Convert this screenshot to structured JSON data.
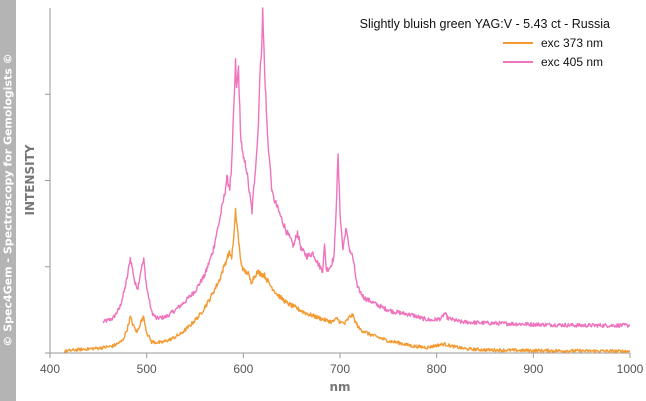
{
  "watermark": "© Spec4Gem - Spectroscopy for Gemologists ©",
  "colors": {
    "sidebar": "#b4b4b4",
    "axis": "#999999"
  },
  "chart_data": {
    "type": "line",
    "title": "Slightly bluish green YAG:V - 5.43 ct - Russia",
    "xlabel": "nm",
    "ylabel": "INTENSITY",
    "xlim": [
      400,
      1000
    ],
    "ylim": [
      0,
      100
    ],
    "xticks": [
      400,
      500,
      600,
      700,
      800,
      900,
      1000
    ],
    "legend_position": "top-right",
    "grid": false,
    "series": [
      {
        "name": "exc 373 nm",
        "color": "#f39a32",
        "points": [
          [
            415,
            0.5
          ],
          [
            430,
            1
          ],
          [
            450,
            1.4
          ],
          [
            465,
            2
          ],
          [
            475,
            3.5
          ],
          [
            480,
            7
          ],
          [
            483,
            10.5
          ],
          [
            486,
            8
          ],
          [
            490,
            6
          ],
          [
            494,
            9
          ],
          [
            497,
            10.5
          ],
          [
            500,
            6
          ],
          [
            505,
            3.2
          ],
          [
            515,
            3
          ],
          [
            525,
            4
          ],
          [
            535,
            5.5
          ],
          [
            545,
            8
          ],
          [
            555,
            11
          ],
          [
            565,
            15.5
          ],
          [
            575,
            21
          ],
          [
            580,
            25
          ],
          [
            585,
            29
          ],
          [
            588,
            28
          ],
          [
            590,
            33
          ],
          [
            592,
            41
          ],
          [
            594,
            36
          ],
          [
            597,
            27
          ],
          [
            600,
            24
          ],
          [
            605,
            23
          ],
          [
            608,
            20.5
          ],
          [
            612,
            22.5
          ],
          [
            615,
            23.5
          ],
          [
            618,
            23
          ],
          [
            622,
            22.5
          ],
          [
            627,
            20
          ],
          [
            635,
            17
          ],
          [
            645,
            14.5
          ],
          [
            655,
            13
          ],
          [
            665,
            11.5
          ],
          [
            675,
            10.5
          ],
          [
            685,
            9.5
          ],
          [
            692,
            9
          ],
          [
            697,
            10
          ],
          [
            700,
            9
          ],
          [
            705,
            8.5
          ],
          [
            710,
            10.5
          ],
          [
            713,
            11
          ],
          [
            716,
            9
          ],
          [
            720,
            7
          ],
          [
            730,
            5.5
          ],
          [
            740,
            4.5
          ],
          [
            750,
            3.5
          ],
          [
            760,
            3
          ],
          [
            775,
            2
          ],
          [
            790,
            1.6
          ],
          [
            800,
            2.2
          ],
          [
            808,
            2.6
          ],
          [
            815,
            2
          ],
          [
            830,
            1.2
          ],
          [
            850,
            0.9
          ],
          [
            870,
            0.8
          ],
          [
            900,
            0.7
          ],
          [
            950,
            0.6
          ],
          [
            1000,
            0.5
          ]
        ]
      },
      {
        "name": "exc 405 nm",
        "color": "#ef73bd",
        "points": [
          [
            455,
            9
          ],
          [
            465,
            10
          ],
          [
            472,
            13
          ],
          [
            476,
            17
          ],
          [
            480,
            22
          ],
          [
            483,
            27.5
          ],
          [
            485,
            25
          ],
          [
            488,
            20
          ],
          [
            491,
            19
          ],
          [
            494,
            24
          ],
          [
            497,
            27
          ],
          [
            500,
            19
          ],
          [
            505,
            12
          ],
          [
            510,
            10
          ],
          [
            520,
            10.5
          ],
          [
            530,
            12.5
          ],
          [
            540,
            15
          ],
          [
            550,
            18
          ],
          [
            560,
            22.5
          ],
          [
            568,
            29
          ],
          [
            575,
            38
          ],
          [
            580,
            45
          ],
          [
            583,
            50.5
          ],
          [
            586,
            48
          ],
          [
            588,
            54
          ],
          [
            590,
            70
          ],
          [
            592,
            84
          ],
          [
            593,
            76
          ],
          [
            595,
            83
          ],
          [
            597,
            64
          ],
          [
            600,
            56
          ],
          [
            603,
            54
          ],
          [
            606,
            47
          ],
          [
            609,
            41
          ],
          [
            612,
            52
          ],
          [
            615,
            63
          ],
          [
            617,
            79
          ],
          [
            619,
            90
          ],
          [
            620,
            99
          ],
          [
            622,
            82
          ],
          [
            625,
            63
          ],
          [
            630,
            46
          ],
          [
            638,
            40
          ],
          [
            645,
            35
          ],
          [
            652,
            31
          ],
          [
            656,
            35
          ],
          [
            660,
            30
          ],
          [
            666,
            28
          ],
          [
            672,
            29
          ],
          [
            678,
            25.5
          ],
          [
            682,
            24
          ],
          [
            684,
            31
          ],
          [
            686,
            24
          ],
          [
            690,
            25
          ],
          [
            694,
            28
          ],
          [
            696,
            42
          ],
          [
            698,
            57
          ],
          [
            700,
            41
          ],
          [
            703,
            30
          ],
          [
            706,
            36
          ],
          [
            708,
            33
          ],
          [
            710,
            30
          ],
          [
            713,
            28
          ],
          [
            718,
            19
          ],
          [
            725,
            16
          ],
          [
            735,
            14.5
          ],
          [
            745,
            13
          ],
          [
            755,
            12
          ],
          [
            765,
            11.5
          ],
          [
            775,
            11
          ],
          [
            785,
            10
          ],
          [
            795,
            9.5
          ],
          [
            805,
            10
          ],
          [
            808,
            11.5
          ],
          [
            812,
            10
          ],
          [
            825,
            9
          ],
          [
            850,
            8.7
          ],
          [
            875,
            8.5
          ],
          [
            900,
            8.3
          ],
          [
            950,
            8
          ],
          [
            1000,
            8
          ]
        ]
      }
    ]
  }
}
